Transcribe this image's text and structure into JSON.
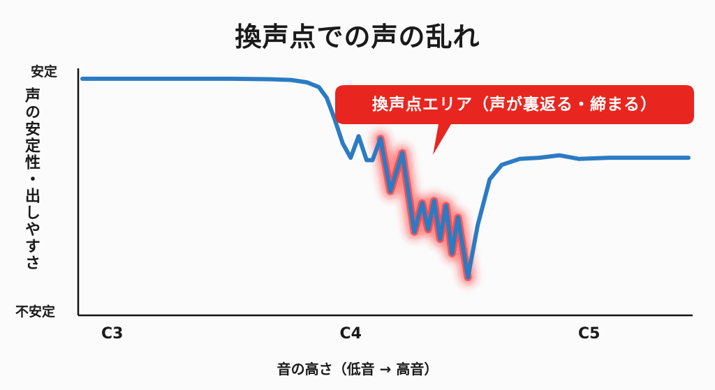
{
  "chart_data": {
    "type": "line",
    "title": "換声点での声の乱れ",
    "xlabel": "音の高さ（低音 → 高音）",
    "ylabel": "声の安定性・出しやすさ",
    "y_top_label": "安定",
    "y_bottom_label": "不安定",
    "ylim": [
      0,
      100
    ],
    "x_ticks": [
      {
        "label": "C3",
        "value": 0
      },
      {
        "label": "C4",
        "value": 12
      },
      {
        "label": "C5",
        "value": 24
      }
    ],
    "xlim": [
      -1.5,
      29
    ],
    "series": [
      {
        "color": "#2b7bc4",
        "points": [
          [
            -1.5,
            91
          ],
          [
            2,
            91
          ],
          [
            6,
            91
          ],
          [
            8,
            90.8
          ],
          [
            9,
            90.5
          ],
          [
            9.8,
            89.5
          ],
          [
            10.4,
            87.5
          ],
          [
            10.8,
            83
          ],
          [
            11.2,
            74
          ],
          [
            11.6,
            64
          ],
          [
            12.0,
            58
          ],
          [
            12.4,
            67
          ],
          [
            12.8,
            57
          ],
          [
            13.1,
            57
          ],
          [
            13.5,
            66
          ],
          [
            14.0,
            44
          ],
          [
            14.6,
            60
          ],
          [
            15.2,
            27
          ],
          [
            15.6,
            39
          ],
          [
            15.9,
            28
          ],
          [
            16.2,
            40
          ],
          [
            16.5,
            24
          ],
          [
            16.8,
            38
          ],
          [
            17.1,
            18
          ],
          [
            17.4,
            33
          ],
          [
            17.9,
            8
          ],
          [
            18.4,
            30
          ],
          [
            19.0,
            49
          ],
          [
            19.6,
            55
          ],
          [
            20.5,
            57.5
          ],
          [
            21.5,
            58
          ],
          [
            22.5,
            59
          ],
          [
            23.5,
            57.5
          ],
          [
            25,
            58
          ],
          [
            27,
            58
          ],
          [
            29,
            58
          ]
        ]
      }
    ],
    "highlight": {
      "x_range": [
        13.2,
        17.9
      ],
      "color": "#ff2a2a",
      "label": "換声点エリア（声が裏返る・締まる）",
      "callout_color": "#e8261f"
    },
    "grid": false,
    "legend": "none"
  }
}
